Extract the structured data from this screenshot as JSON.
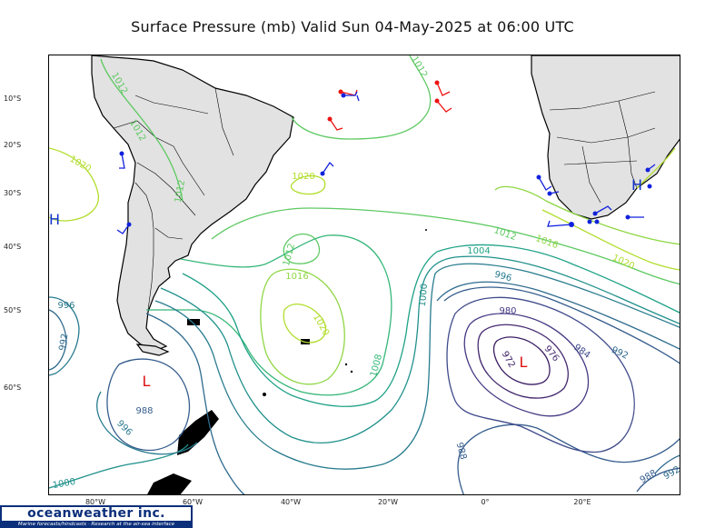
{
  "title": "Surface Pressure (mb) Valid Sun 04-May-2025 at 06:00 UTC",
  "lat_labels": [
    "10°S",
    "20°S",
    "30°S",
    "40°S",
    "50°S",
    "60°S"
  ],
  "lon_labels": [
    "80°W",
    "60°W",
    "40°W",
    "20°W",
    "0°",
    "20°E"
  ],
  "isobar_labels": {
    "l1012_sa_top": "1012",
    "l1012_sa_mid": "1012",
    "l1012_sa_low": "1012",
    "l1012_top": "1012",
    "l1012_c": "1012",
    "l1012_e": "1012",
    "l1020_w": "1020",
    "l1020_c": "1020",
    "l1020_s": "1020",
    "l1020_e": "1020",
    "l1016_c": "1016",
    "l1016_e": "1016",
    "l1008": "1008",
    "l1004": "1004",
    "l1000": "1000",
    "l1000_sw": "1000",
    "l996_w": "996",
    "l996_c": "996",
    "l996_sw": "996",
    "l992_w": "992",
    "l992_e": "992",
    "l988_c": "988",
    "l988_s": "988",
    "l988_se": "988",
    "l984": "984",
    "l980": "980",
    "l976": "976",
    "l972": "972",
    "l992_se": "992"
  },
  "pressure_centers": {
    "low_se": "L",
    "low_sw": "L",
    "high_w": "H",
    "high_e": "H"
  },
  "colors": {
    "p972": "#3b1e63",
    "p976": "#452a70",
    "p980": "#443a83",
    "p984": "#3f4a8a",
    "p988": "#365d8d",
    "p992": "#2f6b8e",
    "p996": "#277b8e",
    "p1000": "#21918c",
    "p1004": "#1fa287",
    "p1008": "#35b779",
    "p1012": "#5ec962",
    "p1016": "#8fd744",
    "p1020": "#b2dd2d",
    "land": "#e2e2e2",
    "low": "#dd1111",
    "high": "#1133cc",
    "obs_red": "#ee1111",
    "obs_blue": "#1122dd"
  },
  "logo": {
    "name": "oceanweather inc.",
    "tagline": "Marine forecasts/hindcasts · Research at the air-sea interface"
  }
}
